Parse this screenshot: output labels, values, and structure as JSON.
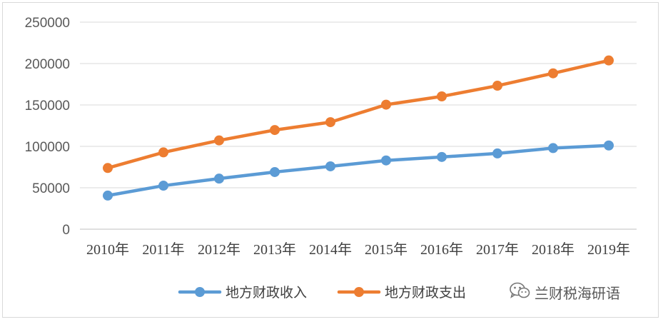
{
  "chart_data": {
    "type": "line",
    "categories": [
      "2010年",
      "2011年",
      "2012年",
      "2013年",
      "2014年",
      "2015年",
      "2016年",
      "2017年",
      "2018年",
      "2019年"
    ],
    "series": [
      {
        "name": "地方财政收入",
        "color": "#5b9bd5",
        "values": [
          40613,
          52547,
          61078,
          69011,
          75877,
          83002,
          87195,
          91469,
          97905,
          101077
        ]
      },
      {
        "name": "地方财政支出",
        "color": "#ed7d31",
        "values": [
          73884,
          92734,
          107188,
          119740,
          129215,
          150336,
          160351,
          173228,
          188196,
          203743
        ]
      }
    ],
    "ylim": [
      0,
      250000
    ],
    "yticks": [
      0,
      50000,
      100000,
      150000,
      200000,
      250000
    ],
    "grid": true,
    "legend": "bottom"
  },
  "watermark": {
    "text": "兰财税海研语",
    "icon": "wechat-icon"
  }
}
